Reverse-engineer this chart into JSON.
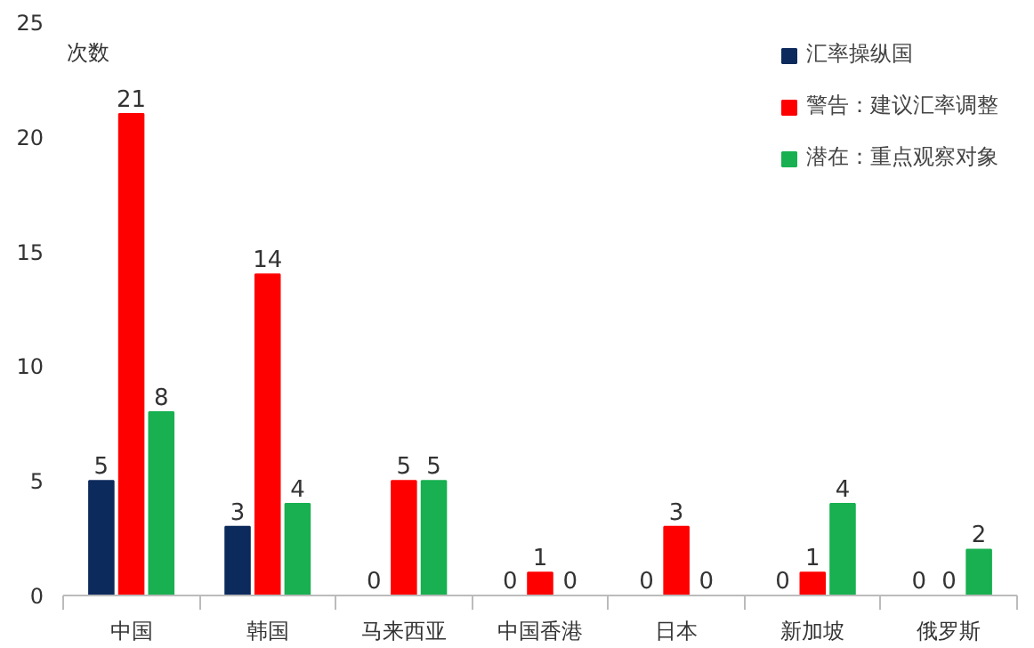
{
  "chart_data": {
    "type": "bar",
    "ylabel": "次数",
    "categories": [
      "中国",
      "韩国",
      "马来西亚",
      "中国香港",
      "日本",
      "新加坡",
      "俄罗斯"
    ],
    "series": [
      {
        "name": "汇率操纵国",
        "color": "#0d2a5c",
        "values": [
          5,
          3,
          0,
          0,
          0,
          0,
          0
        ]
      },
      {
        "name": "警告：建议汇率调整",
        "color": "#ff0000",
        "values": [
          21,
          14,
          5,
          1,
          3,
          1,
          0
        ]
      },
      {
        "name": "潜在：重点观察对象",
        "color": "#18b050",
        "values": [
          8,
          4,
          5,
          0,
          0,
          4,
          2
        ]
      }
    ],
    "ylim": [
      0,
      25
    ],
    "yticks": [
      0,
      5,
      10,
      15,
      20,
      25
    ],
    "grid": false,
    "legend": "top right",
    "data_labels": true
  }
}
